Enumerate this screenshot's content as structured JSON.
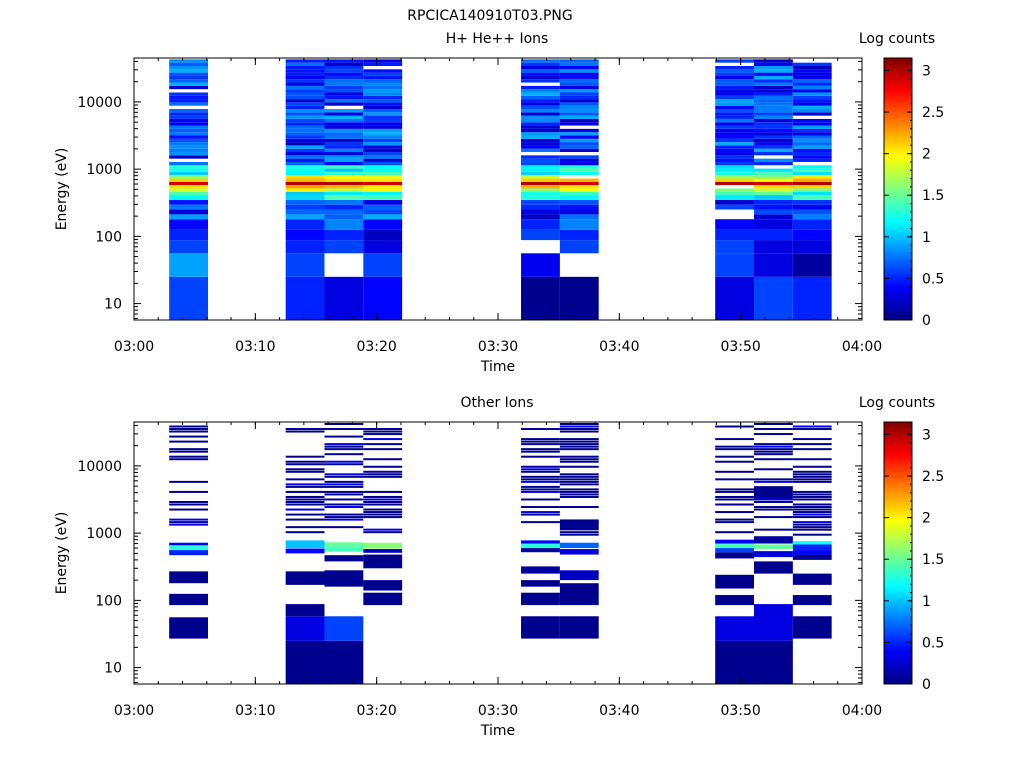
{
  "figure": {
    "title": "RPCICA140910T03.PNG"
  },
  "colorbar": {
    "label": "Log counts",
    "ticks": [
      "0",
      "0.5",
      "1",
      "1.5",
      "2",
      "2.5",
      "3"
    ],
    "min": 0,
    "max": 3.15,
    "colors": [
      "#00007f",
      "#0000ff",
      "#007fff",
      "#00ffff",
      "#7fff7f",
      "#ffff00",
      "#ff7f00",
      "#ff0000",
      "#7f0000"
    ]
  },
  "chart_data": [
    {
      "type": "heatmap",
      "title": "H+ He++ Ions",
      "xlabel": "Time",
      "ylabel": "Energy (eV)",
      "xlim": [
        "03:00",
        "04:00"
      ],
      "ylim": [
        5.7,
        45000
      ],
      "yscale": "log",
      "x_ticks": [
        "03:00",
        "03:10",
        "03:20",
        "03:30",
        "03:40",
        "03:50",
        "04:00"
      ],
      "y_ticks": [
        "10",
        "100",
        "1000",
        "10000"
      ],
      "colorbar_label": "Log counts",
      "columns": [
        {
          "t_start": "03:02.9",
          "t_end": "03:06.1",
          "seed": 11,
          "peak": 2.9,
          "low": [
            0.6,
            0.9,
            0.6,
            0.5,
            0.4
          ]
        },
        {
          "t_start": "03:12.5",
          "t_end": "03:15.7",
          "seed": 23,
          "peak": 3.0,
          "low": [
            0.5,
            0.6,
            0.5,
            0.4,
            0.5
          ]
        },
        {
          "t_start": "03:15.7",
          "t_end": "03:18.9",
          "seed": 37,
          "peak": 3.0,
          "low": [
            0.3,
            -1,
            0.6,
            0.5,
            0.8
          ]
        },
        {
          "t_start": "03:18.9",
          "t_end": "03:22.1",
          "seed": 41,
          "peak": 2.9,
          "low": [
            0.4,
            0.6,
            0.3,
            0.2,
            0.4
          ]
        },
        {
          "t_start": "03:31.9",
          "t_end": "03:35.1",
          "seed": 53,
          "peak": 3.0,
          "low": [
            0.05,
            0.35,
            -1,
            0.6,
            0.5
          ]
        },
        {
          "t_start": "03:35.1",
          "t_end": "03:38.3",
          "seed": 67,
          "peak": 2.9,
          "low": [
            0.05,
            -1,
            0.6,
            0.5,
            0.8
          ]
        },
        {
          "t_start": "03:47.9",
          "t_end": "03:51.1",
          "seed": 71,
          "peak": 3.0,
          "low": [
            0.3,
            0.6,
            0.6,
            0.5,
            0.4
          ]
        },
        {
          "t_start": "03:51.1",
          "t_end": "03:54.3",
          "seed": 83,
          "peak": 2.9,
          "low": [
            0.6,
            0.3,
            0.3,
            0.5,
            0.3
          ]
        },
        {
          "t_start": "03:54.3",
          "t_end": "03:57.5",
          "seed": 97,
          "peak": 3.0,
          "low": [
            0.5,
            0.1,
            0.3,
            0.4,
            0.5
          ]
        }
      ]
    },
    {
      "type": "heatmap",
      "title": "Other Ions",
      "xlabel": "Time",
      "ylabel": "Energy (eV)",
      "xlim": [
        "03:00",
        "04:00"
      ],
      "ylim": [
        5.7,
        45000
      ],
      "yscale": "log",
      "x_ticks": [
        "03:00",
        "03:10",
        "03:20",
        "03:30",
        "03:40",
        "03:50",
        "04:00"
      ],
      "y_ticks": [
        "10",
        "100",
        "1000",
        "10000"
      ],
      "colorbar_label": "Log counts",
      "columns": [
        {
          "t_start": "03:02.9",
          "t_end": "03:06.1",
          "seed": 5,
          "cells": [
            [
              27,
              56,
              0.05
            ],
            [
              85,
              125,
              0.05
            ],
            [
              180,
              270,
              0.05
            ],
            [
              470,
              560,
              0.5
            ],
            [
              560,
              660,
              1.3
            ],
            [
              660,
              720,
              0.4
            ]
          ]
        },
        {
          "t_start": "03:12.5",
          "t_end": "03:15.7",
          "seed": 17,
          "cells": [
            [
              5.7,
              25,
              0.05
            ],
            [
              25,
              58,
              0.3
            ],
            [
              58,
              88,
              0.05
            ],
            [
              170,
              270,
              0.05
            ],
            [
              500,
              590,
              0.4
            ],
            [
              600,
              780,
              1.0
            ]
          ]
        },
        {
          "t_start": "03:15.7",
          "t_end": "03:18.9",
          "seed": 29,
          "cells": [
            [
              5.7,
              25,
              0.05
            ],
            [
              25,
              58,
              0.6
            ],
            [
              160,
              280,
              0.05
            ],
            [
              380,
              470,
              0.05
            ],
            [
              530,
              640,
              1.4
            ],
            [
              640,
              730,
              1.5
            ]
          ]
        },
        {
          "t_start": "03:18.9",
          "t_end": "03:22.1",
          "seed": 31,
          "cells": [
            [
              85,
              130,
              0.05
            ],
            [
              140,
              200,
              0.05
            ],
            [
              300,
              480,
              0.05
            ],
            [
              510,
              580,
              0.2
            ],
            [
              590,
              720,
              1.6
            ]
          ]
        },
        {
          "t_start": "03:31.9",
          "t_end": "03:35.1",
          "seed": 43,
          "cells": [
            [
              27,
              58,
              0.05
            ],
            [
              85,
              130,
              0.05
            ],
            [
              160,
              200,
              0.05
            ],
            [
              250,
              320,
              0.1
            ],
            [
              520,
              600,
              0.1
            ],
            [
              600,
              700,
              1.3
            ],
            [
              700,
              780,
              0.4
            ]
          ]
        },
        {
          "t_start": "03:35.1",
          "t_end": "03:38.3",
          "seed": 59,
          "cells": [
            [
              27,
              58,
              0.05
            ],
            [
              85,
              180,
              0.05
            ],
            [
              200,
              280,
              0.2
            ],
            [
              480,
              580,
              0.3
            ],
            [
              600,
              720,
              0.7
            ],
            [
              1100,
              1600,
              0.05
            ]
          ]
        },
        {
          "t_start": "03:47.9",
          "t_end": "03:51.1",
          "seed": 61,
          "cells": [
            [
              5.7,
              25,
              0.05
            ],
            [
              25,
              58,
              0.3
            ],
            [
              85,
              120,
              0.05
            ],
            [
              150,
              240,
              0.05
            ],
            [
              420,
              520,
              0.05
            ],
            [
              520,
              600,
              0.6
            ],
            [
              600,
              700,
              1.4
            ],
            [
              700,
              800,
              0.4
            ]
          ]
        },
        {
          "t_start": "03:51.1",
          "t_end": "03:54.3",
          "seed": 73,
          "cells": [
            [
              5.7,
              25,
              0.05
            ],
            [
              25,
              88,
              0.3
            ],
            [
              250,
              380,
              0.05
            ],
            [
              440,
              540,
              0.3
            ],
            [
              580,
              680,
              1.5
            ],
            [
              700,
              900,
              0.1
            ],
            [
              3200,
              5000,
              0.05
            ]
          ]
        },
        {
          "t_start": "03:54.3",
          "t_end": "03:57.5",
          "seed": 89,
          "cells": [
            [
              27,
              58,
              0.05
            ],
            [
              85,
              120,
              0.05
            ],
            [
              170,
              250,
              0.05
            ],
            [
              400,
              480,
              0.05
            ],
            [
              480,
              560,
              0.4
            ],
            [
              560,
              680,
              0.5
            ],
            [
              680,
              760,
              1.2
            ]
          ]
        }
      ]
    }
  ]
}
